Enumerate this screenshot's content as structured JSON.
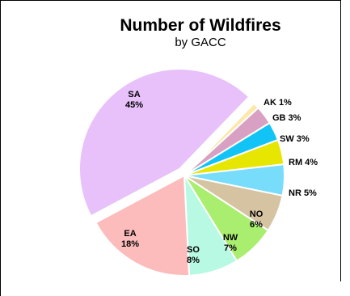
{
  "chart_data": {
    "type": "pie",
    "title": "Number of Wildfires",
    "subtitle": "by GACC",
    "slices": [
      {
        "name": "SA",
        "value": 45,
        "label": "45%",
        "color": "#e8c1fb",
        "exploded": true
      },
      {
        "name": "AK",
        "value": 1,
        "label": "1%",
        "color": "#fce8a8"
      },
      {
        "name": "GB",
        "value": 3,
        "label": "3%",
        "color": "#d8a0c2"
      },
      {
        "name": "SW",
        "value": 3,
        "label": "3%",
        "color": "#12c4f6"
      },
      {
        "name": "RM",
        "value": 4,
        "label": "4%",
        "color": "#e6e600"
      },
      {
        "name": "NR",
        "value": 5,
        "label": "5%",
        "color": "#78dcfb"
      },
      {
        "name": "NO",
        "value": 6,
        "label": "6%",
        "color": "#d5c3a2"
      },
      {
        "name": "NW",
        "value": 7,
        "label": "7%",
        "color": "#a9ee6e"
      },
      {
        "name": "SO",
        "value": 8,
        "label": "8%",
        "color": "#b7f9e3"
      },
      {
        "name": "EA",
        "value": 18,
        "label": "18%",
        "color": "#fcbcbc"
      }
    ]
  }
}
